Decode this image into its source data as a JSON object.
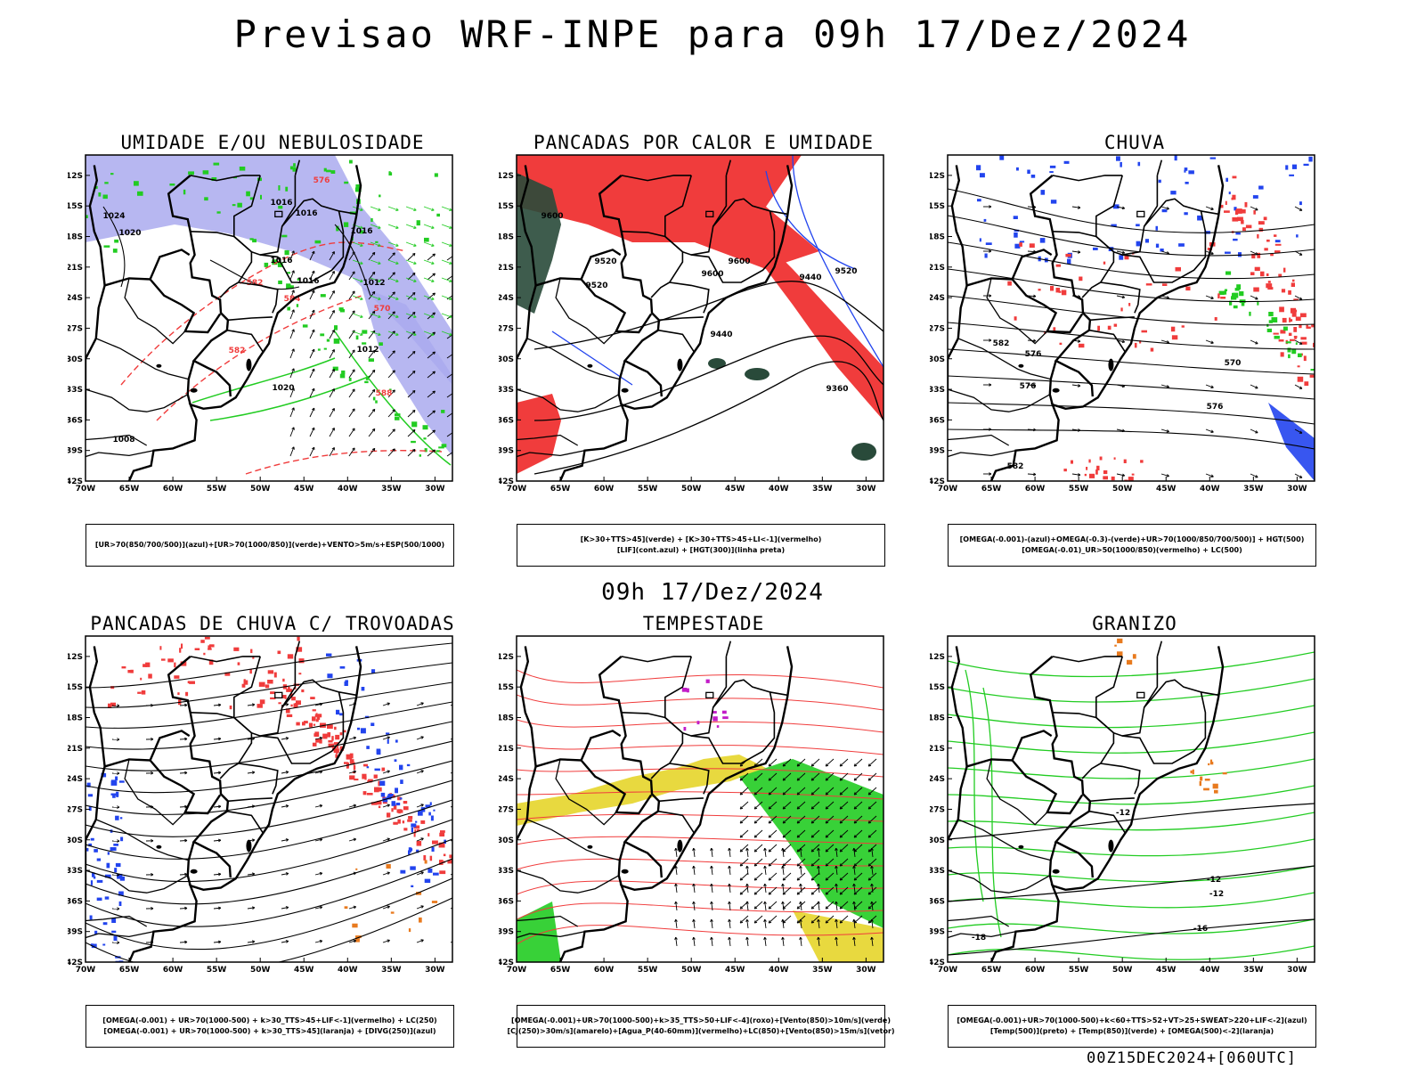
{
  "title": "Previsao WRF-INPE  para 09h 17/Dez/2024",
  "mid_timestamp": "09h 17/Dez/2024",
  "footer": "00Z15DEC2024+[060UTC]",
  "axes": {
    "lat_labels": [
      "12S",
      "15S",
      "18S",
      "21S",
      "24S",
      "27S",
      "30S",
      "33S",
      "36S",
      "39S",
      "42S"
    ],
    "lon_labels": [
      "70W",
      "65W",
      "60W",
      "55W",
      "50W",
      "45W",
      "40W",
      "35W",
      "30W"
    ]
  },
  "colors": {
    "red": "#f03c3c",
    "green": "#22cc22",
    "blue": "#2244ee",
    "lavender": "#aaaaee",
    "darkgreen": "#294a3a",
    "yellow": "#e6d52a",
    "orange": "#e87a1e",
    "purple": "#c21cc8"
  },
  "panels": [
    {
      "id": "umidade",
      "title": "UMIDADE E/OU NEBULOSIDADE",
      "legend": [
        "[UR>70(850/700/500)](azul)+[UR>70(1000/850)](verde)+VENTO>5m/s+ESP(500/1000)"
      ],
      "contour_labels": [
        "1024",
        "1020",
        "1016",
        "1016",
        "1016",
        "1016",
        "1016",
        "1012",
        "1012",
        "1020",
        "1008",
        "576",
        "582",
        "584",
        "570",
        "582",
        "588"
      ]
    },
    {
      "id": "pancadas-calor",
      "title": "PANCADAS POR CALOR E UMIDADE",
      "legend": [
        "[K>30+TTS>45](verde) + [K>30+TTS>45+LI<-1](vermelho)",
        "[LIF](cont.azul) + [HGT(300)](linha preta)"
      ],
      "contour_labels": [
        "9600",
        "9600",
        "9520",
        "9520",
        "9440",
        "9600",
        "9520",
        "9440",
        "9360"
      ]
    },
    {
      "id": "chuva",
      "title": "CHUVA",
      "legend": [
        "[OMEGA(-0.001)-(azul)+OMEGA(-0.3)-(verde)+UR>70(1000/850/700/500)] + HGT(500)",
        "[OMEGA(-0.01)_UR>50(1000/850)(vermelho) + LC(500)"
      ],
      "contour_labels": [
        "582",
        "576",
        "576",
        "570",
        "576",
        "582"
      ]
    },
    {
      "id": "pancadas-trovoadas",
      "title": "PANCADAS DE CHUVA C/ TROVOADAS",
      "legend": [
        "[OMEGA(-0.001) + UR>70(1000-500) + k>30_TTS>45+LIF<-1](vermelho) + LC(250)",
        "[OMEGA(-0.001) + UR>70(1000-500) + k>30_TTS>45](laranja) + [DIVG(250)](azul)"
      ],
      "contour_labels": []
    },
    {
      "id": "tempestade",
      "title": "TEMPESTADE",
      "legend": [
        "[OMEGA(-0.001)+UR>70(1000-500)+k>35_TTS>50+LIF<-4](roxo)+[Vento(850)>10m/s](verde)",
        "[CJ(250)>30m/s](amarelo)+[Agua_P(40-60mm)](vermelho)+LC(850)+[Vento(850)>15m/s](vetor)"
      ],
      "contour_labels": []
    },
    {
      "id": "granizo",
      "title": "GRANIZO",
      "legend": [
        "[OMEGA(-0.001)+UR>70(1000-500)+k<60+TTS>52+VT>25+SWEAT>220+LIF<-2](azul)",
        "[Temp(500)](preto) + [Temp(850)](verde) + [OMEGA(500)<-2](laranja)"
      ],
      "contour_labels": [
        "-12",
        "-12",
        "-12",
        "-18",
        "-16"
      ]
    }
  ]
}
